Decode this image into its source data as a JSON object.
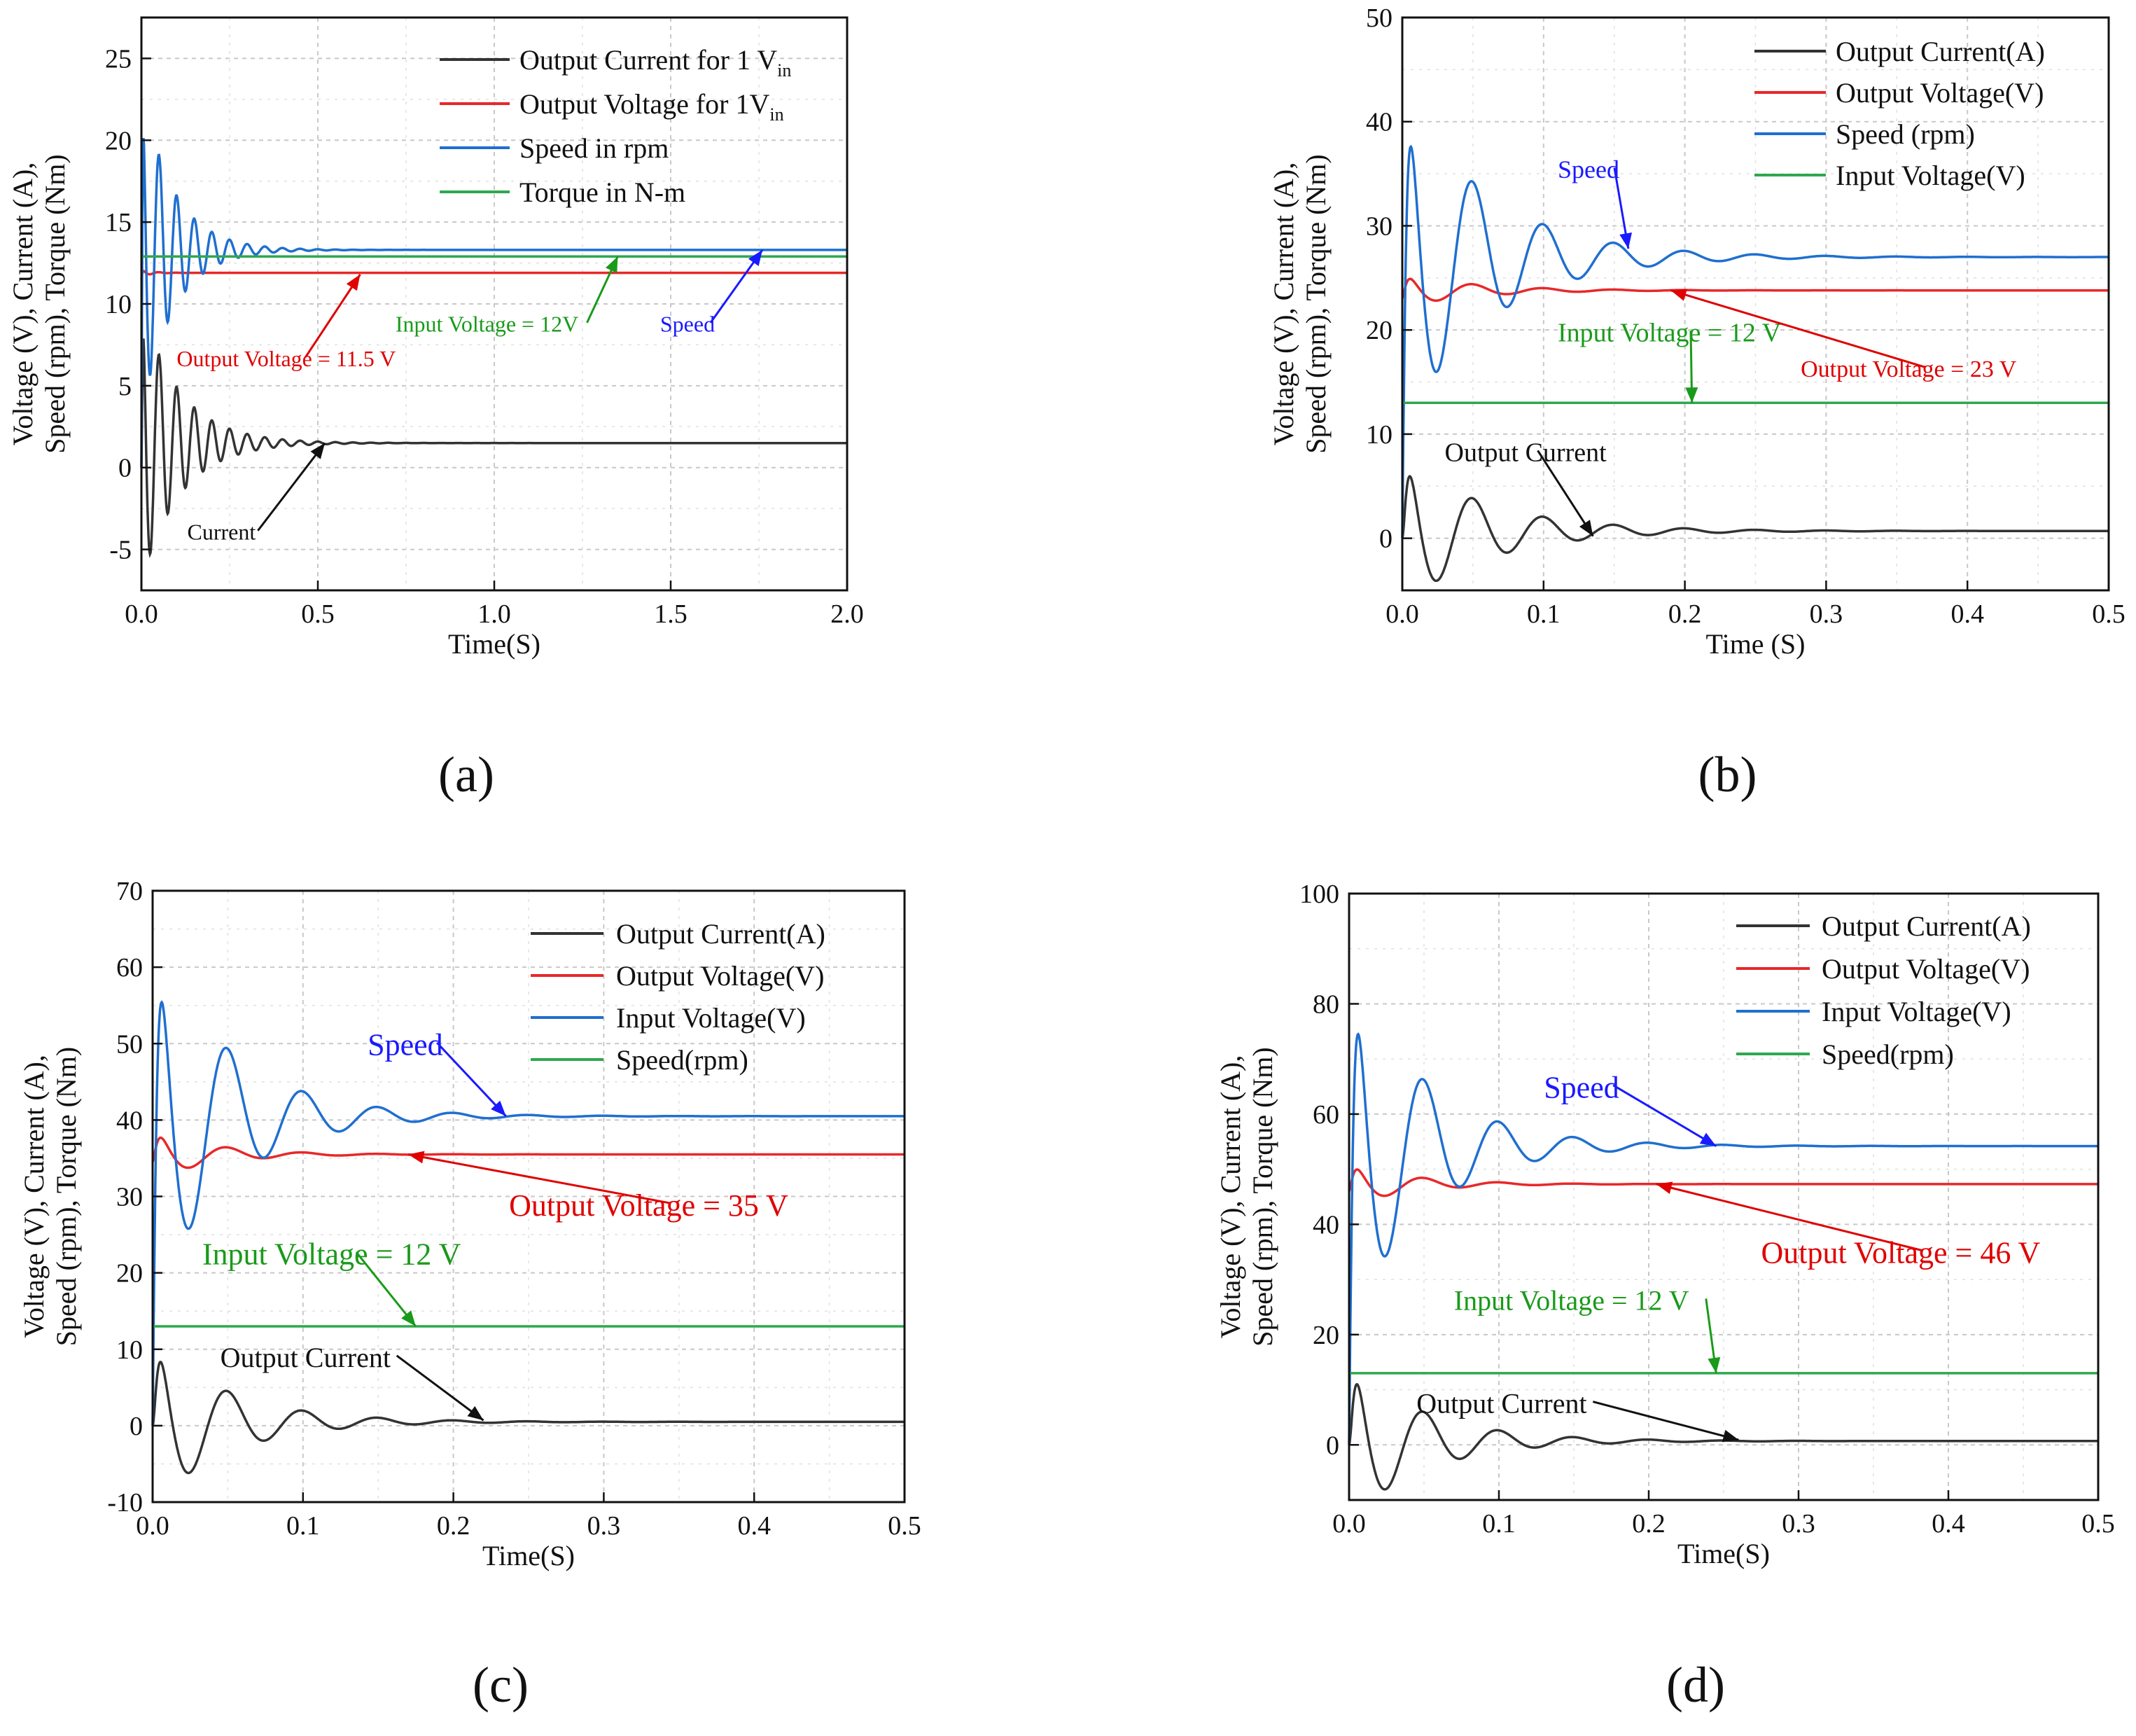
{
  "colors": {
    "black": "#333333",
    "red": "#e8282a",
    "blue": "#1f6fd0",
    "green": "#2ea84f",
    "annotation_blue": "#1a1aff",
    "annotation_green": "#1a9a1a",
    "annotation_red": "#e00000"
  },
  "chart_data": [
    {
      "panel": "(a)",
      "type": "line",
      "xlabel": "Time(S)",
      "ylabel_lines": [
        "Voltage (V), Current (A),",
        "Speed (rpm), Torque (Nm)"
      ],
      "xlim": [
        0,
        2
      ],
      "ylim": [
        -7.5,
        27.5
      ],
      "xticks": [
        0,
        0.5,
        1,
        1.5,
        2
      ],
      "xtick_labels": [
        "0.0",
        "0.5",
        "1.0",
        "1.5",
        "2.0"
      ],
      "yticks": [
        -5,
        0,
        5,
        10,
        15,
        20,
        25
      ],
      "ytick_labels": [
        "-5",
        "0",
        "5",
        "10",
        "15",
        "20",
        "25"
      ],
      "grid": true,
      "legend_position": "top-right",
      "legend": [
        {
          "text": "Output Current for 1 V",
          "sub": "in",
          "color": "#333333"
        },
        {
          "text": "Output Voltage for 1V",
          "sub": "in",
          "color": "#e8282a"
        },
        {
          "text": "Speed in rpm",
          "sub": "",
          "color": "#1f6fd0"
        },
        {
          "text": "Torque in N-m",
          "sub": "",
          "color": "#2ea84f"
        }
      ],
      "series": [
        {
          "color": "#333333",
          "start": 0,
          "final": 1.5,
          "peak": 10,
          "decay": 0.11,
          "freq": 20,
          "t_end": 2
        },
        {
          "color": "#e8282a",
          "start": 11.5,
          "final": 11.9,
          "peak": 12.1,
          "decay": 0.03,
          "freq": 20,
          "t_end": 2
        },
        {
          "color": "#1f6fd0",
          "start": 0,
          "final": 13.3,
          "peak": 23.4,
          "decay": 0.09,
          "freq": 20,
          "t_end": 2
        },
        {
          "color": "#2ea84f",
          "start": 12.9,
          "final": 12.9,
          "peak": 12.9,
          "decay": 0.05,
          "freq": 20,
          "t_end": 2
        }
      ],
      "annotations": [
        {
          "text": "Output Voltage = 11.5 V",
          "color": "#e00000",
          "x": 0.1,
          "y": 6.2,
          "size": 32,
          "ax": 0.62,
          "ay": 11.8
        },
        {
          "text": "Input Voltage = 12V",
          "color": "#1a9a1a",
          "x": 0.72,
          "y": 8.3,
          "size": 32,
          "ax": 1.35,
          "ay": 12.9
        },
        {
          "text": "Speed",
          "color": "#1a1aff",
          "x": 1.47,
          "y": 8.3,
          "size": 32,
          "ax": 1.76,
          "ay": 13.3
        },
        {
          "text": "Current",
          "color": "#111111",
          "x": 0.13,
          "y": -4.4,
          "size": 32,
          "ax": 0.52,
          "ay": 1.5
        }
      ]
    },
    {
      "panel": "(b)",
      "type": "line",
      "xlabel": "Time (S)",
      "ylabel_lines": [
        "Voltage (V), Current (A),",
        "Speed (rpm), Torque (Nm)"
      ],
      "xlim": [
        0,
        0.5
      ],
      "ylim": [
        -5,
        50
      ],
      "xticks": [
        0,
        0.1,
        0.2,
        0.3,
        0.4,
        0.5
      ],
      "xtick_labels": [
        "0.0",
        "0.1",
        "0.2",
        "0.3",
        "0.4",
        "0.5"
      ],
      "yticks": [
        0,
        10,
        20,
        30,
        40,
        50
      ],
      "ytick_labels": [
        "0",
        "10",
        "20",
        "30",
        "40",
        "50"
      ],
      "grid": true,
      "legend_position": "top-right",
      "legend": [
        {
          "text": "Output Current(A)",
          "sub": "",
          "color": "#333333"
        },
        {
          "text": "Output Voltage(V)",
          "sub": "",
          "color": "#e8282a"
        },
        {
          "text": "Speed (rpm)",
          "sub": "",
          "color": "#1f6fd0"
        },
        {
          "text": "Input Voltage(V)",
          "sub": "",
          "color": "#2ea84f"
        }
      ],
      "series": [
        {
          "color": "#333333",
          "start": 0,
          "final": 0.7,
          "peak": 7.9,
          "decay": 0.06,
          "freq": 20,
          "t_end": 0.5
        },
        {
          "color": "#e8282a",
          "start": 23,
          "final": 23.8,
          "peak": 25.4,
          "decay": 0.05,
          "freq": 20,
          "t_end": 0.5
        },
        {
          "color": "#1f6fd0",
          "start": 0,
          "final": 27,
          "peak": 43.6,
          "decay": 0.06,
          "freq": 20,
          "t_end": 0.5
        },
        {
          "color": "#2ea84f",
          "start": 13,
          "final": 13,
          "peak": 13,
          "decay": 0.05,
          "freq": 20,
          "t_end": 0.5
        }
      ],
      "annotations": [
        {
          "text": "Speed",
          "color": "#1a1aff",
          "x": 0.11,
          "y": 34.6,
          "size": 36,
          "ax": 0.16,
          "ay": 27.8
        },
        {
          "text": "Input Voltage = 12 V",
          "color": "#1a9a1a",
          "x": 0.11,
          "y": 18.9,
          "size": 38,
          "ax": 0.205,
          "ay": 13
        },
        {
          "text": "Output Voltage = 23 V",
          "color": "#e00000",
          "x": 0.282,
          "y": 15.5,
          "size": 34,
          "ax": 0.19,
          "ay": 23.8
        },
        {
          "text": "Output Current",
          "color": "#111111",
          "x": 0.03,
          "y": 7.4,
          "size": 38,
          "ax": 0.135,
          "ay": 0.2
        }
      ]
    },
    {
      "panel": "(c)",
      "type": "line",
      "xlabel": "Time(S)",
      "ylabel_lines": [
        "Voltage (V), Current (A),",
        "Speed (rpm), Torque (Nm)"
      ],
      "xlim": [
        0,
        0.5
      ],
      "ylim": [
        -10,
        70
      ],
      "xticks": [
        0,
        0.1,
        0.2,
        0.3,
        0.4,
        0.5
      ],
      "xtick_labels": [
        "0.0",
        "0.1",
        "0.2",
        "0.3",
        "0.4",
        "0.5"
      ],
      "yticks": [
        -10,
        0,
        10,
        20,
        30,
        40,
        50,
        60,
        70
      ],
      "ytick_labels": [
        "-10",
        "0",
        "10",
        "20",
        "30",
        "40",
        "50",
        "60",
        "70"
      ],
      "grid": true,
      "legend_position": "top-right",
      "legend": [
        {
          "text": "Output Current(A)",
          "sub": "",
          "color": "#333333"
        },
        {
          "text": "Output Voltage(V)",
          "sub": "",
          "color": "#e8282a"
        },
        {
          "text": "Input Voltage(V)",
          "sub": "",
          "color": "#1f6fd0"
        },
        {
          "text": "Speed(rpm)",
          "sub": "",
          "color": "#2ea84f"
        }
      ],
      "series": [
        {
          "color": "#333333",
          "start": 0,
          "final": 0.5,
          "peak": 11.4,
          "decay": 0.05,
          "freq": 20,
          "t_end": 0.5
        },
        {
          "color": "#e8282a",
          "start": 34.5,
          "final": 35.5,
          "peak": 38.7,
          "decay": 0.04,
          "freq": 20,
          "t_end": 0.5
        },
        {
          "color": "#1f6fd0",
          "start": 0,
          "final": 40.5,
          "peak": 64.5,
          "decay": 0.05,
          "freq": 20,
          "t_end": 0.5
        },
        {
          "color": "#2ea84f",
          "start": 13,
          "final": 13,
          "peak": 13,
          "decay": 0.05,
          "freq": 20,
          "t_end": 0.5
        }
      ],
      "annotations": [
        {
          "text": "Speed",
          "color": "#1a1aff",
          "x": 0.143,
          "y": 48.5,
          "size": 44,
          "ax": 0.235,
          "ay": 40.5
        },
        {
          "text": "Output Voltage = 35 V",
          "color": "#e00000",
          "x": 0.237,
          "y": 27.5,
          "size": 44,
          "ax": 0.17,
          "ay": 35.5
        },
        {
          "text": "Input Voltage = 12 V",
          "color": "#1a9a1a",
          "x": 0.033,
          "y": 21.1,
          "size": 44,
          "ax": 0.175,
          "ay": 13
        },
        {
          "text": "Output Current",
          "color": "#111111",
          "x": 0.045,
          "y": 7.7,
          "size": 40,
          "ax": 0.22,
          "ay": 0.7
        }
      ]
    },
    {
      "panel": "(d)",
      "type": "line",
      "xlabel": "Time(S)",
      "ylabel_lines": [
        "Voltage (V), Current (A),",
        "Speed (rpm), Torque (Nm)"
      ],
      "xlim": [
        0,
        0.5
      ],
      "ylim": [
        -10,
        100
      ],
      "xticks": [
        0,
        0.1,
        0.2,
        0.3,
        0.4,
        0.5
      ],
      "xtick_labels": [
        "0.0",
        "0.1",
        "0.2",
        "0.3",
        "0.4",
        "0.5"
      ],
      "yticks": [
        0,
        20,
        40,
        60,
        80,
        100
      ],
      "ytick_labels": [
        "0",
        "20",
        "40",
        "60",
        "80",
        "100"
      ],
      "grid": true,
      "legend_position": "top-right",
      "legend": [
        {
          "text": "Output Current(A)",
          "sub": "",
          "color": "#333333"
        },
        {
          "text": "Output Voltage(V)",
          "sub": "",
          "color": "#e8282a"
        },
        {
          "text": "Input Voltage(V)",
          "sub": "",
          "color": "#1f6fd0"
        },
        {
          "text": "Speed(rpm)",
          "sub": "",
          "color": "#2ea84f"
        }
      ],
      "series": [
        {
          "color": "#333333",
          "start": 0,
          "final": 0.7,
          "peak": 15,
          "decay": 0.05,
          "freq": 20,
          "t_end": 0.5
        },
        {
          "color": "#e8282a",
          "start": 46,
          "final": 47.3,
          "peak": 51.2,
          "decay": 0.04,
          "freq": 20,
          "t_end": 0.5
        },
        {
          "color": "#1f6fd0",
          "start": 0,
          "final": 54.2,
          "peak": 86.8,
          "decay": 0.05,
          "freq": 20,
          "t_end": 0.5
        },
        {
          "color": "#2ea84f",
          "start": 13,
          "final": 13,
          "peak": 13,
          "decay": 0.05,
          "freq": 20,
          "t_end": 0.5
        }
      ],
      "annotations": [
        {
          "text": "Speed",
          "color": "#1a1aff",
          "x": 0.13,
          "y": 63,
          "size": 44,
          "ax": 0.245,
          "ay": 54.2
        },
        {
          "text": "Output Voltage = 46 V",
          "color": "#e00000",
          "x": 0.275,
          "y": 33,
          "size": 44,
          "ax": 0.205,
          "ay": 47.3
        },
        {
          "text": "Input Voltage = 12 V",
          "color": "#1a9a1a",
          "x": 0.07,
          "y": 24.5,
          "size": 40,
          "ax": 0.245,
          "ay": 13
        },
        {
          "text": "Output Current",
          "color": "#111111",
          "x": 0.045,
          "y": 5.8,
          "size": 40,
          "ax": 0.26,
          "ay": 0.9
        }
      ]
    }
  ]
}
